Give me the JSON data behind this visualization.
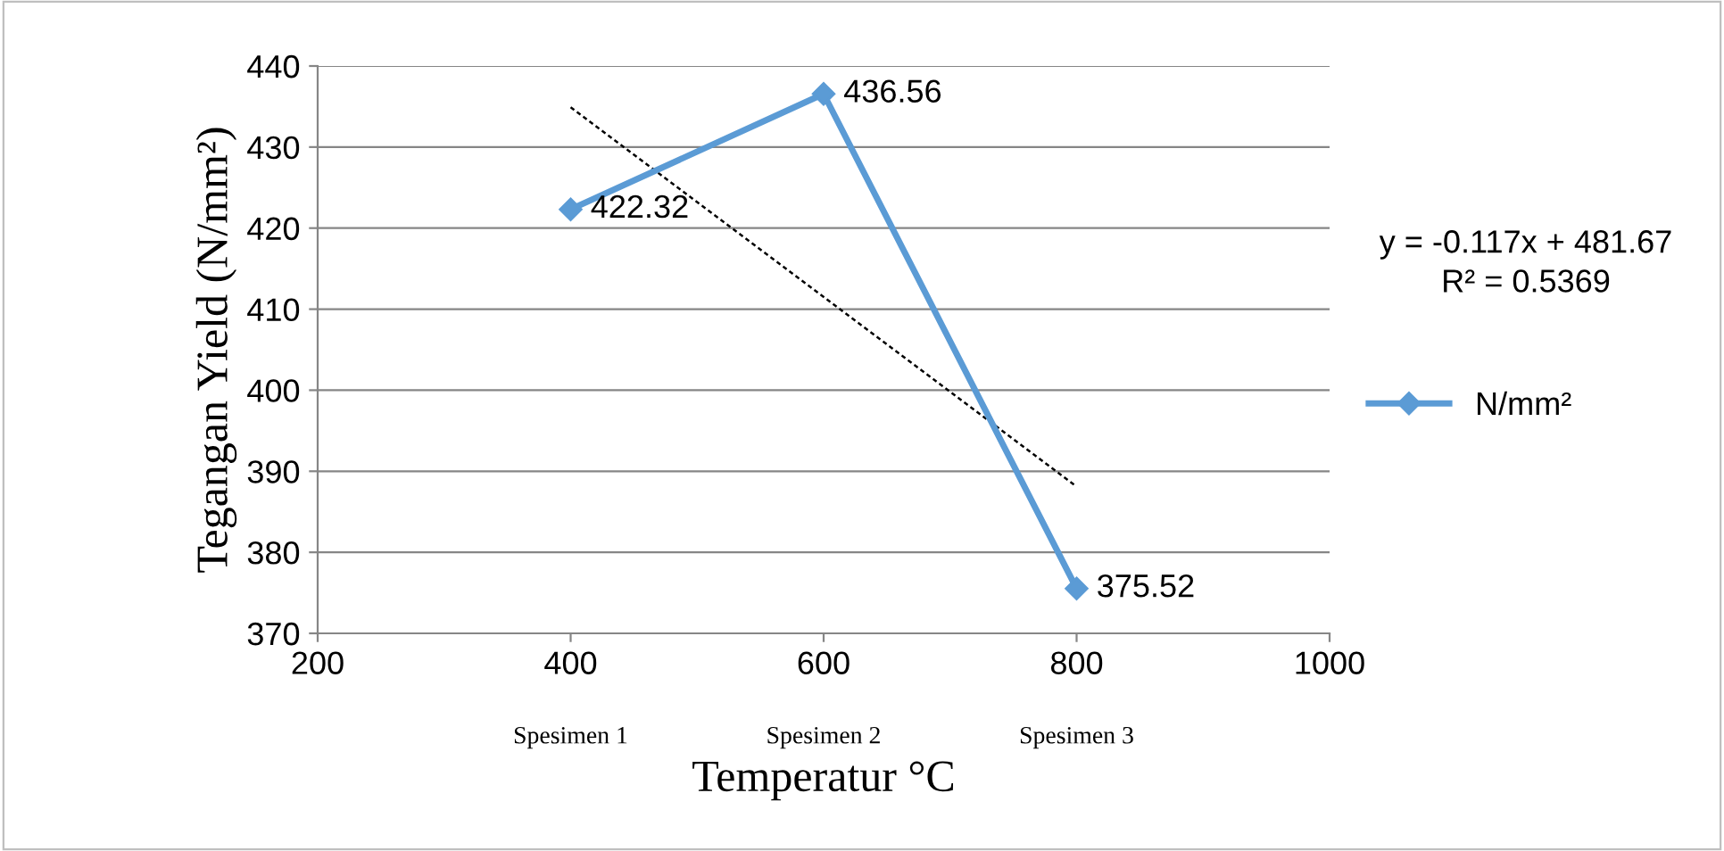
{
  "chart_data": {
    "type": "line",
    "xlabel": "Temperatur °C",
    "ylabel": "Tegangan Yield (N/mm²)",
    "x": [
      400,
      600,
      800
    ],
    "series": [
      {
        "name": "N/mm²",
        "color": "#5b9bd5",
        "values": [
          422.32,
          436.56,
          375.52
        ],
        "value_labels": [
          "422.32",
          "436.56",
          "375.52"
        ],
        "marker": "diamond",
        "line_style": "solid"
      },
      {
        "type": "line",
        "color": "#000000",
        "x": [
          400,
          800
        ],
        "values": [
          434.9,
          388.1
        ],
        "line_style": "dotted",
        "marker": "none"
      }
    ],
    "xlim": [
      200,
      1000
    ],
    "xticks": [
      200,
      400,
      600,
      800,
      1000
    ],
    "ylim": [
      370,
      440
    ],
    "yticks": [
      370,
      380,
      390,
      400,
      410,
      420,
      430,
      440
    ],
    "grid": "y",
    "legend": "right",
    "annotations": [
      "y = -0.117x + 481.67",
      "R² = 0.5369",
      "Spesimen 1",
      "Spesimen 2",
      "Spesimen 3"
    ]
  }
}
